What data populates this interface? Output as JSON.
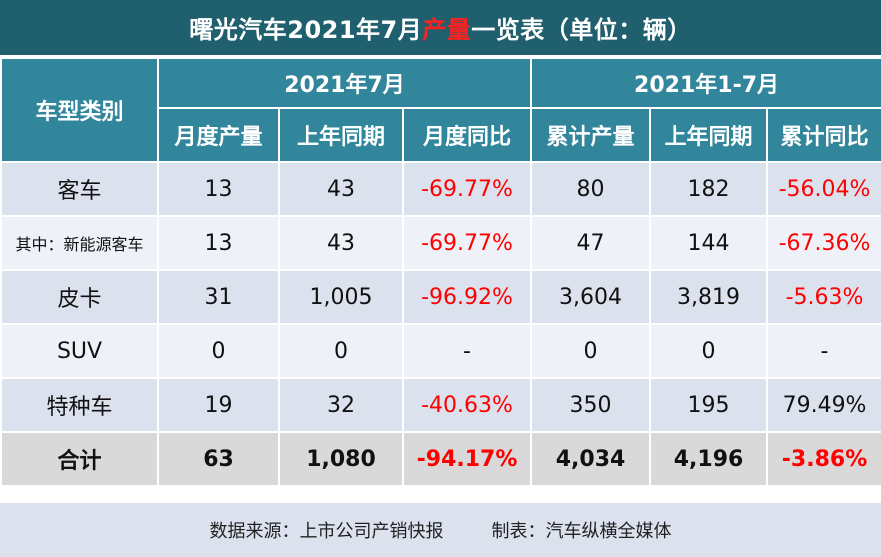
{
  "title": {
    "prefix": "曙光汽车2021年7月",
    "highlight": "产量",
    "suffix": "一览表（单位：辆）",
    "highlight_color": "#ff2020"
  },
  "header": {
    "category": "车型类别",
    "group_month": "2021年7月",
    "group_ytd": "2021年1-7月",
    "columns": [
      "月度产量",
      "上年同期",
      "月度同比",
      "累计产量",
      "上年同期",
      "累计同比"
    ]
  },
  "rows": [
    {
      "category": "客车",
      "values": [
        "13",
        "43",
        "-69.77%",
        "80",
        "182",
        "-56.04%"
      ]
    },
    {
      "category": "其中：新能源客车",
      "values": [
        "13",
        "43",
        "-69.77%",
        "47",
        "144",
        "-67.36%"
      ]
    },
    {
      "category": "皮卡",
      "values": [
        "31",
        "1,005",
        "-96.92%",
        "3,604",
        "3,819",
        "-5.63%"
      ]
    },
    {
      "category": "SUV",
      "values": [
        "0",
        "0",
        "-",
        "0",
        "0",
        "-"
      ]
    },
    {
      "category": "特种车",
      "values": [
        "19",
        "32",
        "-40.63%",
        "350",
        "195",
        "79.49%"
      ]
    },
    {
      "category": "合计",
      "values": [
        "63",
        "1,080",
        "-94.17%",
        "4,034",
        "4,196",
        "-3.86%"
      ]
    }
  ],
  "footer": {
    "source": "数据来源：上市公司产销快报",
    "author": "制表：汽车纵横全媒体"
  },
  "colors": {
    "title_bg": "#1f5f6e",
    "header_bg": "#31869b",
    "negative": "#ff0000",
    "row_light": "#eef1f8",
    "row_dark": "#dce1ee",
    "total_bg": "#d9d9d9"
  }
}
